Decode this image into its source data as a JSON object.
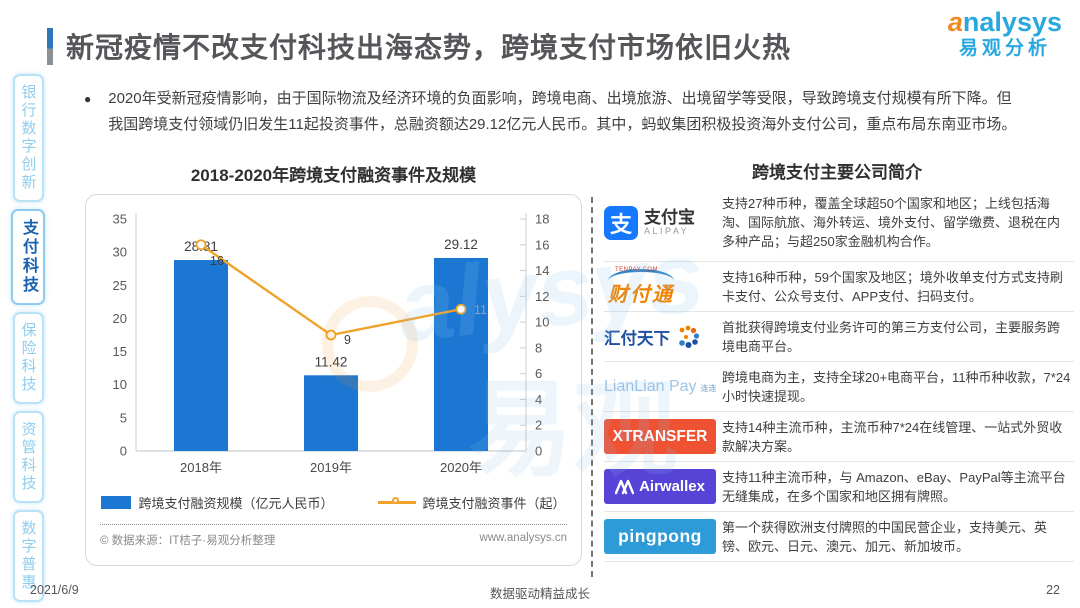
{
  "header": {
    "title": "新冠疫情不改支付科技出海态势，跨境支付市场依旧火热",
    "logo": {
      "brand_en_head": "a",
      "brand_en_tail": "nalysys",
      "brand_cn": "易观分析"
    }
  },
  "sidebar": {
    "items": [
      {
        "label": "银行数字创新",
        "active": false
      },
      {
        "label": "支付科技",
        "active": true
      },
      {
        "label": "保险科技",
        "active": false
      },
      {
        "label": "资管科技",
        "active": false
      },
      {
        "label": "数字普惠",
        "active": false
      }
    ]
  },
  "summary": {
    "bullet": "●",
    "text": "2020年受新冠疫情影响，由于国际物流及经济环境的负面影响，跨境电商、出境旅游、出境留学等受限，导致跨境支付规模有所下降。但我国跨境支付领域仍旧发生11起投资事件，总融资额达29.12亿元人民币。其中，蚂蚁集团积极投资海外支付公司，重点布局东南亚市场。"
  },
  "chart_data": {
    "type": "bar+line",
    "title": "2018-2020年跨境支付融资事件及规模",
    "categories": [
      "2018年",
      "2019年",
      "2020年"
    ],
    "series": [
      {
        "name": "跨境支付融资规模（亿元人民币）",
        "type": "bar",
        "axis": "left",
        "values": [
          28.81,
          11.42,
          29.12
        ],
        "color": "#1B77D2"
      },
      {
        "name": "跨境支付融资事件（起）",
        "type": "line",
        "axis": "right",
        "values": [
          16,
          9,
          11
        ],
        "color": "#EFA32A"
      }
    ],
    "left_axis": {
      "min": 0,
      "max": 35,
      "ticks": [
        0,
        5,
        10,
        15,
        20,
        25,
        30,
        35
      ]
    },
    "right_axis": {
      "min": 0,
      "max": 18,
      "ticks": [
        0,
        2,
        4,
        6,
        8,
        10,
        12,
        14,
        16,
        18
      ]
    },
    "grid": false,
    "legend_position": "bottom",
    "source": "© 数据来源：IT桔子·易观分析整理",
    "website": "www.analysys.cn"
  },
  "companies": {
    "title": "跨境支付主要公司简介",
    "rows": [
      {
        "name": "支付宝",
        "logo": {
          "icon_text": "支",
          "cn": "支付宝",
          "en": "ALIPAY",
          "color": "#1677FF"
        },
        "desc": "支持27种币种，覆盖全球超50个国家和地区；上线包括海淘、国际航旅、海外转运、境外支付、留学缴费、退税在内多种产品；与超250家金融机构合作。"
      },
      {
        "name": "财付通",
        "logo": {
          "top": "TENPAY.COM",
          "cn": "财付通",
          "color": "#F08300"
        },
        "desc": "支持16种币种，59个国家及地区；境外收单支付方式支持刷卡支付、公众号支付、APP支付、扫码支付。"
      },
      {
        "name": "汇付天下",
        "logo": {
          "cn": "汇付天下",
          "color": "#1F4FA0"
        },
        "desc": "首批获得跨境支付业务许可的第三方支付公司，主要服务跨境电商平台。"
      },
      {
        "name": "LianLian Pay",
        "logo": {
          "en": "LianLian Pay",
          "badge": "连连",
          "color": "#9CC4E6"
        },
        "desc": "跨境电商为主，支持全球20+电商平台，11种币种收款，7*24 小时快速提现。"
      },
      {
        "name": "XTRANSFER",
        "logo": {
          "en": "XTRANSFER",
          "bg": "#EF5233"
        },
        "desc": "支持14种主流币种，主流币种7*24在线管理、一站式外贸收款解决方案。"
      },
      {
        "name": "Airwallex",
        "logo": {
          "en": "Airwallex",
          "bg": "#5743D6"
        },
        "desc": "支持11种主流币种，与 Amazon、eBay、PayPal等主流平台无缝集成，在多个国家和地区拥有牌照。"
      },
      {
        "name": "pingpong",
        "logo": {
          "en": "pingpong",
          "bg": "#2E9BD9"
        },
        "desc": "第一个获得欧洲支付牌照的中国民营企业，支持美元、英镑、欧元、日元、澳元、加元、新加坡币。"
      }
    ]
  },
  "watermarks": {
    "text1": "alysys",
    "text2": "易观"
  },
  "footer": {
    "date": "2021/6/9",
    "slogan": "数据驱动精益成长",
    "page": "22"
  }
}
